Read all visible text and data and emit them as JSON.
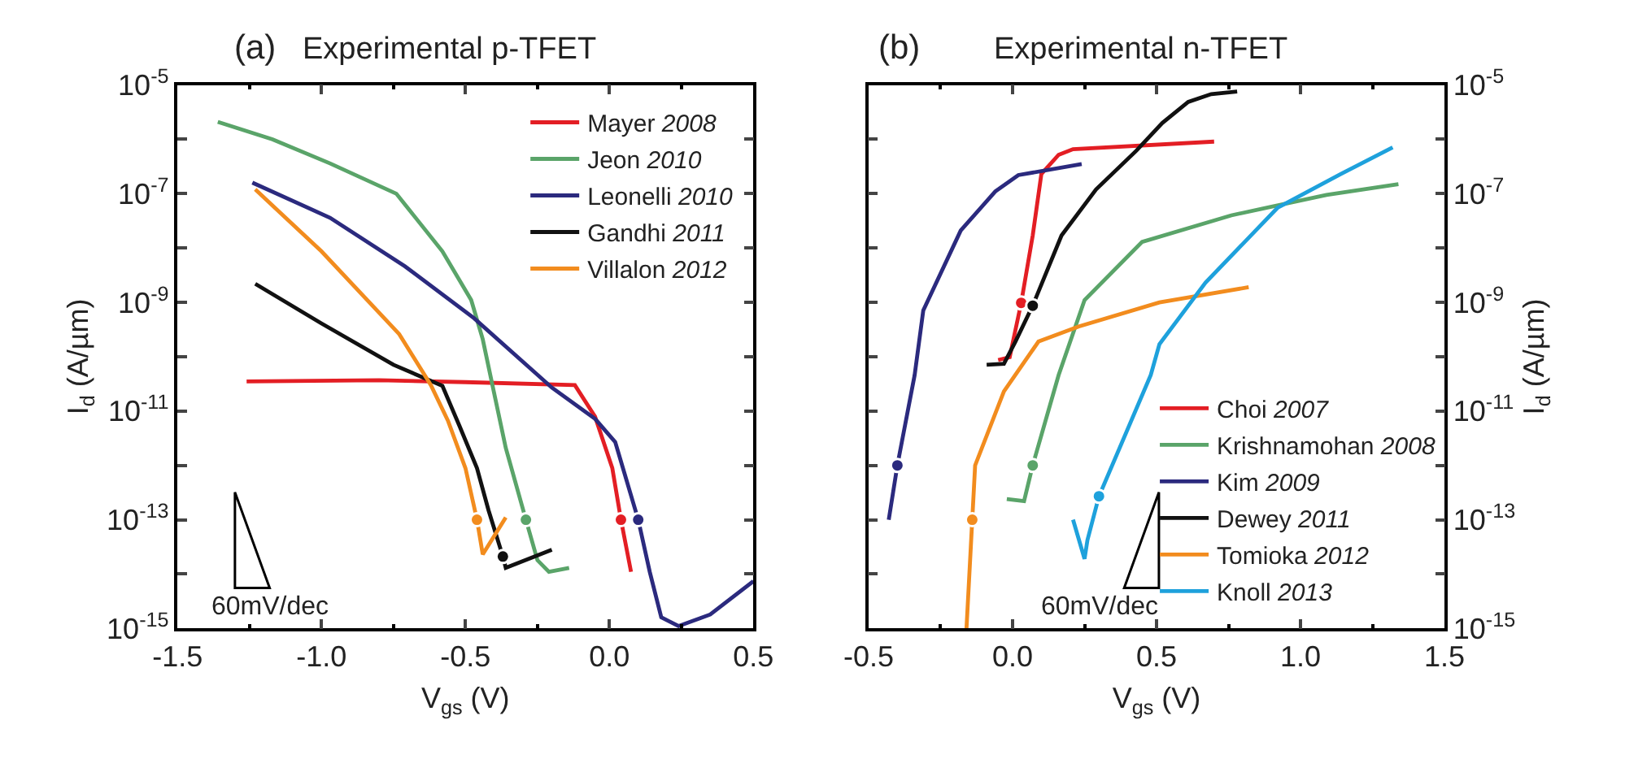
{
  "chart_data": [
    {
      "type": "line",
      "title": "Experimental p-TFET",
      "xlabel": "V$_{gs}$ (V)",
      "ylabel": "I$_{d}$ (A/µm)",
      "log": "y",
      "legend": "top right",
      "marker": "none",
      "line_style": "solid",
      "xlim": [
        -1.5,
        0.5
      ],
      "xticks": [
        {
          "value": -1.5,
          "label": "-1.5"
        },
        {
          "value": -1,
          "label": "-1.0"
        },
        {
          "value": -0.5,
          "label": "-0.5"
        },
        {
          "value": 0,
          "label": "0.0"
        },
        {
          "value": 0.5,
          "label": "0.5"
        }
      ],
      "ylim": [
        1e-15,
        1e-05
      ],
      "yticks": [
        {
          "value": 1e-15,
          "label": "10$^{-15}$"
        },
        {
          "value": 1e-14,
          "label": null
        },
        {
          "value": 1e-13,
          "label": "10$^{-13}$"
        },
        {
          "value": 1e-12,
          "label": null
        },
        {
          "value": 1e-11,
          "label": "10$^{-11}$"
        },
        {
          "value": 1e-10,
          "label": null
        },
        {
          "value": 1e-09,
          "label": "10$^{-9}$"
        },
        {
          "value": 1e-08,
          "label": null
        },
        {
          "value": 1e-07,
          "label": "10$^{-7}$"
        },
        {
          "value": 1e-06,
          "label": null
        },
        {
          "value": 1e-05,
          "label": "10$^{-5}$"
        }
      ],
      "annotations": [
        "(a)",
        "60mV/dec"
      ],
      "series": [
        {
          "name": "Mayer 2008",
          "color": "#e31e24",
          "x": [
            -1.26,
            -0.8,
            -0.5,
            -0.12,
            -0.05,
            0.01,
            0.04,
            0.075
          ],
          "values": [
            3.5e-11,
            3.7e-11,
            3.4e-11,
            3e-11,
            7.9e-12,
            8.9e-13,
            1e-13,
            1.1e-14
          ]
        },
        {
          "name": "Jeon 2010",
          "color": "#5aa469",
          "x": [
            -1.36,
            -1.17,
            -0.97,
            -0.74,
            -0.58,
            -0.48,
            -0.44,
            -0.41,
            -0.36,
            -0.29,
            -0.25,
            -0.21,
            -0.14
          ],
          "values": [
            2.1e-06,
            1e-06,
            3.6e-07,
            1e-07,
            8.7e-09,
            1.1e-09,
            2.1e-10,
            3.7e-11,
            2.1e-12,
            1e-13,
            1.8e-14,
            1.1e-14,
            1.3e-14
          ]
        },
        {
          "name": "Leonelli 2010",
          "color": "#2b2a7e",
          "x": [
            -1.24,
            -0.97,
            -0.71,
            -0.47,
            -0.2,
            -0.05,
            0.02,
            0.1,
            0.14,
            0.18,
            0.24,
            0.35,
            0.5
          ],
          "values": [
            1.6e-07,
            3.6e-08,
            4.6e-09,
            5.1e-10,
            2.7e-11,
            7.2e-12,
            2.7e-12,
            1e-13,
            1.1e-14,
            1.6e-15,
            1.1e-15,
            1.8e-15,
            7.4e-15
          ]
        },
        {
          "name": "Gandhi 2011",
          "color": "#111111",
          "x": [
            -1.23,
            -1.0,
            -0.75,
            -0.58,
            -0.52,
            -0.46,
            -0.42,
            -0.37,
            -0.36,
            -0.2
          ],
          "values": [
            2.2e-09,
            4.1e-10,
            7.1e-11,
            2.9e-11,
            5.2e-12,
            8.9e-13,
            1.5e-13,
            2.1e-14,
            1.3e-14,
            2.8e-14
          ]
        },
        {
          "name": "Villalon 2012",
          "color": "#f28c1e",
          "x": [
            -1.23,
            -1.0,
            -0.73,
            -0.62,
            -0.56,
            -0.5,
            -0.46,
            -0.44,
            -0.36
          ],
          "values": [
            1.2e-07,
            8.7e-09,
            2.6e-10,
            3e-11,
            6.5e-12,
            8.9e-13,
            1e-13,
            2.3e-14,
            1.1e-13
          ]
        },
        {
          "type": "scatter",
          "marker": "circle",
          "color": "#e31e24",
          "x": [
            0.04
          ],
          "values": [
            1e-13
          ]
        },
        {
          "type": "scatter",
          "marker": "circle",
          "color": "#5aa469",
          "x": [
            -0.29
          ],
          "values": [
            1e-13
          ]
        },
        {
          "type": "scatter",
          "marker": "circle",
          "color": "#2b2a7e",
          "x": [
            0.1
          ],
          "values": [
            1e-13
          ]
        },
        {
          "type": "scatter",
          "marker": "circle",
          "color": "#111111",
          "x": [
            -0.37
          ],
          "values": [
            2.1e-14
          ]
        },
        {
          "type": "scatter",
          "marker": "circle",
          "color": "#f28c1e",
          "x": [
            -0.46
          ],
          "values": [
            1e-13
          ]
        }
      ]
    },
    {
      "type": "line",
      "title": "Experimental n-TFET",
      "xlabel": "V$_{gs}$ (V)",
      "ylabel": "I$_{d}$ (A/µm)",
      "log": "y",
      "legend": "bottom right",
      "marker": "none",
      "line_style": "solid",
      "xlim": [
        -0.5,
        1.5
      ],
      "xticks": [
        {
          "value": -0.5,
          "label": "-0.5"
        },
        {
          "value": 0,
          "label": "0.0"
        },
        {
          "value": 0.5,
          "label": "0.5"
        },
        {
          "value": 1,
          "label": "1.0"
        },
        {
          "value": 1.5,
          "label": "1.5"
        }
      ],
      "ylim": [
        1e-15,
        1e-05
      ],
      "yticks": [
        {
          "value": 1e-15,
          "label": "10$^{-15}$"
        },
        {
          "value": 1e-14,
          "label": null
        },
        {
          "value": 1e-13,
          "label": "10$^{-13}$"
        },
        {
          "value": 1e-12,
          "label": null
        },
        {
          "value": 1e-11,
          "label": "10$^{-11}$"
        },
        {
          "value": 1e-10,
          "label": null
        },
        {
          "value": 1e-09,
          "label": "10$^{-9}$"
        },
        {
          "value": 1e-08,
          "label": null
        },
        {
          "value": 1e-07,
          "label": "10$^{-7}$"
        },
        {
          "value": 1e-06,
          "label": null
        },
        {
          "value": 1e-05,
          "label": "10$^{-5}$"
        }
      ],
      "annotations": [
        "(b)",
        "60mV/dec"
      ],
      "series": [
        {
          "name": "Choi 2007",
          "color": "#e31e24",
          "x": [
            -0.05,
            -0.01,
            0.03,
            0.07,
            0.1,
            0.16,
            0.21,
            0.7
          ],
          "values": [
            8.7e-11,
            9.8e-11,
            9.8e-10,
            1.7e-08,
            2.3e-07,
            5.2e-07,
            6.6e-07,
            9.1e-07
          ]
        },
        {
          "name": "Krishnamohan 2008",
          "color": "#5aa469",
          "x": [
            -0.02,
            0.04,
            0.07,
            0.16,
            0.25,
            0.45,
            0.76,
            1.09,
            1.34
          ],
          "values": [
            2.4e-13,
            2.2e-13,
            1e-12,
            4.6e-11,
            1.1e-09,
            1.3e-08,
            4e-08,
            9.5e-08,
            1.5e-07
          ]
        },
        {
          "name": "Kim 2009",
          "color": "#2b2a7e",
          "x": [
            -0.43,
            -0.4,
            -0.34,
            -0.31,
            -0.18,
            -0.06,
            0.02,
            0.24
          ],
          "values": [
            1e-13,
            1e-12,
            4.6e-11,
            7.1e-10,
            2.1e-08,
            1.1e-07,
            2.2e-07,
            3.5e-07
          ]
        },
        {
          "name": "Dewey 2011",
          "color": "#111111",
          "x": [
            -0.09,
            -0.03,
            0.01,
            0.07,
            0.17,
            0.29,
            0.43,
            0.52,
            0.61,
            0.69,
            0.78
          ],
          "values": [
            7.1e-11,
            7.4e-11,
            1.9e-10,
            8.7e-10,
            1.7e-08,
            1.2e-07,
            6.2e-07,
            2e-06,
            4.9e-06,
            6.8e-06,
            7.6e-06
          ]
        },
        {
          "name": "Tomioka 2012",
          "color": "#f28c1e",
          "x": [
            -0.16,
            -0.14,
            -0.13,
            -0.03,
            0.09,
            0.23,
            0.51,
            0.82
          ],
          "values": [
            1e-15,
            1e-13,
            1e-12,
            2.3e-11,
            1.9e-10,
            3.6e-10,
            1e-09,
            1.9e-09
          ]
        },
        {
          "name": "Knoll 2013",
          "color": "#1ea1dc",
          "x": [
            0.21,
            0.25,
            0.26,
            0.3,
            0.48,
            0.51,
            0.67,
            0.92,
            1.14,
            1.32
          ],
          "values": [
            1e-13,
            1.9e-14,
            4.2e-14,
            2.7e-13,
            4.6e-11,
            1.7e-10,
            2.3e-09,
            5.5e-08,
            2.3e-07,
            7.1e-07
          ]
        },
        {
          "type": "scatter",
          "marker": "circle",
          "color": "#e31e24",
          "x": [
            0.03
          ],
          "values": [
            9.8e-10
          ]
        },
        {
          "type": "scatter",
          "marker": "circle",
          "color": "#5aa469",
          "x": [
            0.07
          ],
          "values": [
            1e-12
          ]
        },
        {
          "type": "scatter",
          "marker": "circle",
          "color": "#2b2a7e",
          "x": [
            -0.4
          ],
          "values": [
            1e-12
          ]
        },
        {
          "type": "scatter",
          "marker": "circle",
          "color": "#111111",
          "x": [
            0.07
          ],
          "values": [
            8.7e-10
          ]
        },
        {
          "type": "scatter",
          "marker": "circle",
          "color": "#f28c1e",
          "x": [
            -0.14
          ],
          "values": [
            1e-13
          ]
        },
        {
          "type": "scatter",
          "marker": "circle",
          "color": "#1ea1dc",
          "x": [
            0.3
          ],
          "values": [
            2.7e-13
          ]
        }
      ]
    }
  ]
}
